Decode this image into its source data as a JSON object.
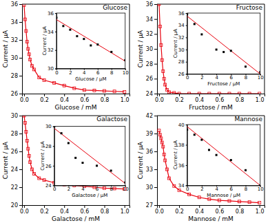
{
  "chart_data": [
    {
      "type": "line",
      "title": "Glucose",
      "xlabel": "Glucose / mM",
      "ylabel": "Current / μA",
      "x": [
        0.0,
        0.01,
        0.02,
        0.03,
        0.04,
        0.05,
        0.06,
        0.08,
        0.1,
        0.15,
        0.2,
        0.3,
        0.4,
        0.5,
        0.6,
        0.7,
        0.8,
        0.9,
        1.0
      ],
      "series": [
        {
          "color": "#e8000d",
          "marker": "square",
          "values": [
            35.9,
            34.3,
            33.0,
            31.8,
            31.0,
            30.4,
            29.8,
            29.1,
            28.7,
            27.8,
            27.5,
            27.2,
            26.9,
            26.6,
            26.4,
            26.35,
            26.3,
            26.25,
            26.2
          ]
        }
      ],
      "xlim": [
        -0.02,
        1.05
      ],
      "xticks": [
        {
          "value": 0.0,
          "label": "0.0"
        },
        0.2,
        0.4,
        0.6,
        0.8,
        {
          "value": 1.0,
          "label": "1.0"
        }
      ],
      "ylim": [
        26,
        36
      ],
      "yticks": [
        26,
        28,
        30,
        32,
        34,
        36
      ]
    },
    {
      "type": "scatter",
      "xlabel": "Glucose / μM",
      "ylabel": "Current / μA",
      "series": [
        {
          "type": "line",
          "color": "#e8000d",
          "x": [
            0,
            10
          ],
          "values": [
            35.3,
            30.8
          ]
        },
        {
          "type": "scatter",
          "color": "black",
          "marker": "square",
          "x": [
            0,
            1,
            2,
            3,
            4,
            5,
            6,
            8,
            10
          ],
          "values": [
            35.5,
            34.6,
            34.2,
            33.5,
            33.2,
            32.5,
            32.6,
            31.8,
            30.9
          ]
        }
      ],
      "xlim": [
        0,
        10
      ],
      "xticks": [
        0,
        2,
        4,
        6,
        8,
        10
      ],
      "ylim": [
        30,
        36
      ],
      "yticks": [
        30,
        32,
        34,
        36
      ]
    },
    {
      "type": "line",
      "title": "Fructose",
      "xlabel": "Fructose / mM",
      "ylabel": "Current / μA",
      "x": [
        0.0,
        0.01,
        0.02,
        0.03,
        0.04,
        0.05,
        0.06,
        0.08,
        0.1,
        0.15,
        0.2,
        0.3,
        0.4,
        0.5,
        0.6,
        0.7,
        0.8,
        0.9,
        1.0
      ],
      "series": [
        {
          "color": "#e8000d",
          "marker": "square",
          "values": [
            36.0,
            33.0,
            30.5,
            28.5,
            27.0,
            26.0,
            25.2,
            24.5,
            24.2,
            24.1,
            24.0,
            24.0,
            24.0,
            24.0,
            24.0,
            24.0,
            24.0,
            24.0,
            24.0
          ]
        }
      ],
      "xlim": [
        -0.02,
        1.05
      ],
      "xticks": [
        {
          "value": 0.0,
          "label": "0.0"
        },
        0.2,
        0.4,
        0.6,
        0.8,
        {
          "value": 1.0,
          "label": "1.0"
        }
      ],
      "ylim": [
        24,
        36
      ],
      "yticks": [
        24,
        26,
        28,
        30,
        32,
        34,
        36
      ]
    },
    {
      "type": "scatter",
      "xlabel": "Fructose / μM",
      "ylabel": "Current / μA",
      "series": [
        {
          "type": "line",
          "color": "#e8000d",
          "x": [
            0,
            10
          ],
          "values": [
            35.5,
            26.0
          ]
        },
        {
          "type": "scatter",
          "color": "black",
          "marker": "square",
          "x": [
            0,
            1,
            2,
            4,
            5,
            6,
            8,
            10
          ],
          "values": [
            35.8,
            34.2,
            32.5,
            30.0,
            29.6,
            29.8,
            27.2,
            26.3
          ]
        }
      ],
      "xlim": [
        0,
        10
      ],
      "xticks": [
        0,
        2,
        4,
        6,
        8,
        10
      ],
      "ylim": [
        26,
        36
      ],
      "yticks": [
        26,
        28,
        30,
        32,
        34,
        36
      ]
    },
    {
      "type": "line",
      "title": "Galactose",
      "xlabel": "Galactose / mM",
      "ylabel": "Current / μA",
      "x": [
        0.0,
        0.01,
        0.02,
        0.03,
        0.04,
        0.05,
        0.06,
        0.08,
        0.1,
        0.15,
        0.2,
        0.3,
        0.4,
        0.5,
        0.6,
        0.7,
        0.8,
        0.9,
        1.0
      ],
      "series": [
        {
          "color": "#e8000d",
          "marker": "square",
          "values": [
            30.0,
            29.2,
            28.2,
            27.2,
            26.3,
            25.5,
            24.8,
            24.0,
            23.5,
            23.0,
            22.8,
            22.5,
            22.3,
            22.2,
            22.1,
            22.0,
            21.9,
            21.85,
            21.8
          ]
        }
      ],
      "xlim": [
        -0.02,
        1.05
      ],
      "xticks": [
        {
          "value": 0.0,
          "label": "0.0"
        },
        0.2,
        0.4,
        0.6,
        0.8,
        {
          "value": 1.0,
          "label": "1.0"
        }
      ],
      "ylim": [
        20,
        30
      ],
      "yticks": [
        20,
        22,
        24,
        26,
        28,
        30
      ]
    },
    {
      "type": "scatter",
      "xlabel": "Galactose / μM",
      "ylabel": "Current / μA",
      "series": [
        {
          "type": "line",
          "color": "#e8000d",
          "x": [
            0,
            10
          ],
          "values": [
            29.8,
            24.2
          ]
        },
        {
          "type": "scatter",
          "color": "black",
          "marker": "square",
          "x": [
            0,
            1,
            2,
            3,
            4,
            6,
            8,
            10
          ],
          "values": [
            30.0,
            29.3,
            28.3,
            26.8,
            26.3,
            26.0,
            25.5,
            24.3
          ]
        }
      ],
      "xlim": [
        0,
        10
      ],
      "xticks": [
        0,
        2,
        4,
        6,
        8,
        10
      ],
      "ylim": [
        24,
        30
      ],
      "yticks": [
        24,
        26,
        28,
        30
      ]
    },
    {
      "type": "line",
      "title": "Mannose",
      "xlabel": "Mannose / mM",
      "ylabel": "Current / μA",
      "x": [
        0.0,
        0.01,
        0.02,
        0.03,
        0.04,
        0.05,
        0.06,
        0.08,
        0.1,
        0.15,
        0.2,
        0.3,
        0.4,
        0.5,
        0.6,
        0.7,
        0.8,
        0.9,
        1.0
      ],
      "series": [
        {
          "color": "#e8000d",
          "marker": "square",
          "values": [
            39.5,
            38.8,
            38.2,
            37.5,
            36.8,
            35.5,
            34.5,
            33.0,
            31.5,
            30.2,
            29.5,
            28.8,
            28.3,
            28.0,
            27.8,
            27.7,
            27.6,
            27.5,
            27.4
          ]
        }
      ],
      "xlim": [
        -0.02,
        1.05
      ],
      "xticks": [
        {
          "value": 0.0,
          "label": "0.0"
        },
        0.2,
        0.4,
        0.6,
        0.8,
        {
          "value": 1.0,
          "label": "1.0"
        }
      ],
      "ylim": [
        27,
        42
      ],
      "yticks": [
        27,
        30,
        33,
        36,
        39,
        42
      ]
    },
    {
      "type": "scatter",
      "xlabel": "Mannose / μM",
      "ylabel": "Current / μA",
      "series": [
        {
          "type": "line",
          "color": "#e8000d",
          "x": [
            0,
            10
          ],
          "values": [
            39.8,
            34.0
          ]
        },
        {
          "type": "scatter",
          "color": "black",
          "marker": "square",
          "x": [
            0,
            1,
            2,
            3,
            4,
            6,
            8,
            10
          ],
          "values": [
            39.5,
            39.0,
            38.5,
            37.5,
            37.0,
            36.5,
            35.5,
            34.0
          ]
        }
      ],
      "xlim": [
        0,
        10
      ],
      "xticks": [
        0,
        2,
        4,
        6,
        8,
        10
      ],
      "ylim": [
        34,
        40
      ],
      "yticks": [
        34,
        36,
        38,
        40
      ]
    }
  ]
}
